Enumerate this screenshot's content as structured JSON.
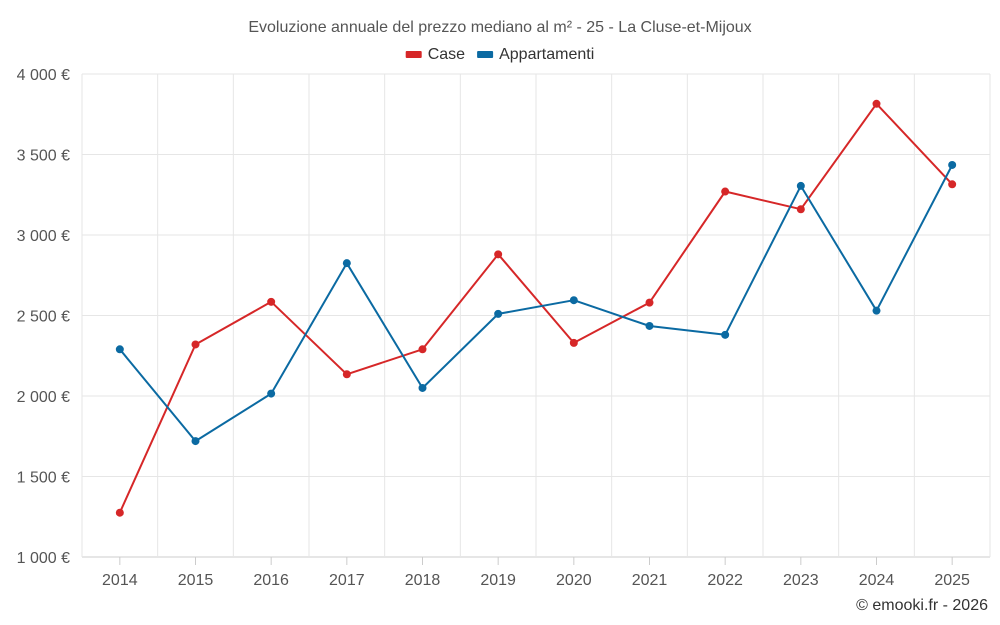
{
  "chart_data": {
    "type": "line",
    "title": "Evoluzione annuale del prezzo mediano al m² - 25 - La Cluse-et-Mijoux",
    "categories": [
      "2014",
      "2015",
      "2016",
      "2017",
      "2018",
      "2019",
      "2020",
      "2021",
      "2022",
      "2023",
      "2024",
      "2025"
    ],
    "series": [
      {
        "name": "Case",
        "color": "#d62728",
        "values": [
          1275,
          2320,
          2585,
          2135,
          2290,
          2880,
          2330,
          2580,
          3270,
          3160,
          3815,
          3315
        ]
      },
      {
        "name": "Appartamenti",
        "color": "#0b6aa2",
        "values": [
          2290,
          1720,
          2015,
          2825,
          2050,
          2510,
          2595,
          2435,
          2380,
          3305,
          2530,
          3435
        ]
      }
    ],
    "ylim": [
      1000,
      4000
    ],
    "yticks": [
      1000,
      1500,
      2000,
      2500,
      3000,
      3500,
      4000
    ],
    "ytick_labels": [
      "1 000 €",
      "1 500 €",
      "2 000 €",
      "2 500 €",
      "3 000 €",
      "3 500 €",
      "4 000 €"
    ],
    "xlabel": "",
    "ylabel": "",
    "grid": true,
    "legend_position": "top-center"
  },
  "credit": "© emooki.fr - 2026"
}
